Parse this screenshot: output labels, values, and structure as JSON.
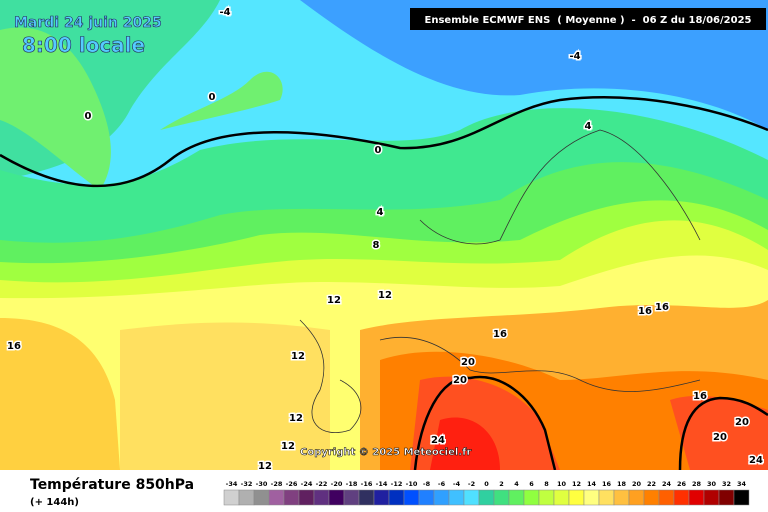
{
  "header": {
    "date": "Mardi 24 juin 2025",
    "time": "8:00 locale",
    "model": "Ensemble ECMWF ENS  ( Moyenne )  -  06 Z du 18/06/2025"
  },
  "copyright": "Copyright © 2025 Meteociel.fr",
  "footer": {
    "title": "Température 850hPa",
    "subtitle": "(+ 144h)"
  },
  "contour_labels": [
    -4,
    -4,
    0,
    0,
    0,
    4,
    4,
    8,
    12,
    12,
    12,
    12,
    12,
    12,
    16,
    16,
    16,
    16,
    16,
    20,
    20,
    20,
    20,
    24,
    24
  ],
  "legend": {
    "values": [
      -34,
      -32,
      -30,
      -28,
      -26,
      -24,
      -22,
      -20,
      -18,
      -16,
      -14,
      -12,
      -10,
      -8,
      -6,
      -4,
      -2,
      0,
      2,
      4,
      6,
      8,
      10,
      12,
      14,
      16,
      18,
      20,
      22,
      24,
      26,
      28,
      30,
      32,
      34
    ],
    "colors": [
      "#d0d0d0",
      "#b0b0b0",
      "#909090",
      "#a060a0",
      "#804080",
      "#602060",
      "#603080",
      "#400060",
      "#604080",
      "#303060",
      "#2020a0",
      "#0030c0",
      "#0050ff",
      "#2080ff",
      "#30a0ff",
      "#40c0ff",
      "#50e0ff",
      "#30d0a0",
      "#40e080",
      "#60f060",
      "#90ff40",
      "#c0ff40",
      "#e0ff40",
      "#ffff40",
      "#ffff80",
      "#ffe060",
      "#ffc040",
      "#ffa020",
      "#ff8000",
      "#ff6000",
      "#ff3000",
      "#e00000",
      "#b00000",
      "#800000",
      "#000000"
    ]
  }
}
